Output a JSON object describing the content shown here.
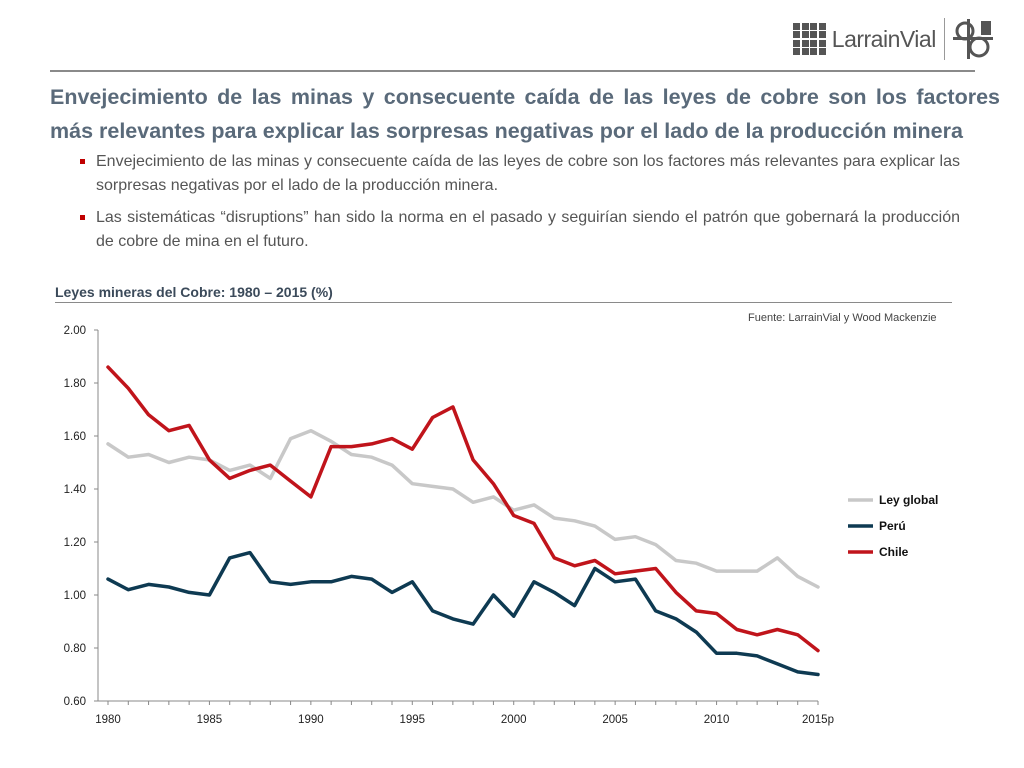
{
  "brand": {
    "name": "LarrainVial"
  },
  "title": "Envejecimiento de las minas y consecuente caída de las leyes de cobre son los factores más relevantes para explicar las sorpresas negativas por el lado de la producción minera",
  "bullets": [
    "Envejecimiento de las minas y consecuente caída de las leyes de cobre son los factores más relevantes para explicar las sorpresas negativas por el lado de la producción minera.",
    "Las sistemáticas “disruptions” han sido la norma en el pasado y seguirían siendo el patrón que gobernará la producción de cobre de mina en el futuro."
  ],
  "chart_data": {
    "type": "line",
    "title": "Leyes mineras del Cobre: 1980 – 2015 (%)",
    "source": "Fuente: LarrainVial y Wood Mackenzie",
    "x": [
      1980,
      1981,
      1982,
      1983,
      1984,
      1985,
      1986,
      1987,
      1988,
      1989,
      1990,
      1991,
      1992,
      1993,
      1994,
      1995,
      1996,
      1997,
      1998,
      1999,
      2000,
      2001,
      2002,
      2003,
      2004,
      2005,
      2006,
      2007,
      2008,
      2009,
      2010,
      2011,
      2012,
      2013,
      2014,
      2015
    ],
    "x_tick_labels": [
      "1980",
      "1985",
      "1990",
      "1995",
      "2000",
      "2005",
      "2010",
      "2015p"
    ],
    "x_tick_values": [
      1980,
      1985,
      1990,
      1995,
      2000,
      2005,
      2010,
      2015
    ],
    "ylim": [
      0.6,
      2.0
    ],
    "y_ticks": [
      "0.60",
      "0.80",
      "1.00",
      "1.20",
      "1.40",
      "1.60",
      "1.80",
      "2.00"
    ],
    "grid": false,
    "legend_position": "right",
    "series": [
      {
        "name": "Ley global",
        "color": "#c8c8c8",
        "values": [
          1.57,
          1.52,
          1.53,
          1.5,
          1.52,
          1.51,
          1.47,
          1.49,
          1.44,
          1.59,
          1.62,
          1.58,
          1.53,
          1.52,
          1.49,
          1.42,
          1.41,
          1.4,
          1.35,
          1.37,
          1.32,
          1.34,
          1.29,
          1.28,
          1.26,
          1.21,
          1.22,
          1.19,
          1.13,
          1.12,
          1.09,
          1.09,
          1.09,
          1.14,
          1.07,
          1.03
        ]
      },
      {
        "name": "Perú",
        "color": "#0e3a52",
        "values": [
          1.06,
          1.02,
          1.04,
          1.03,
          1.01,
          1.0,
          1.14,
          1.16,
          1.05,
          1.04,
          1.05,
          1.05,
          1.07,
          1.06,
          1.01,
          1.05,
          0.94,
          0.91,
          0.89,
          1.0,
          0.92,
          1.05,
          1.01,
          0.96,
          1.1,
          1.05,
          1.06,
          0.94,
          0.91,
          0.86,
          0.78,
          0.78,
          0.77,
          0.74,
          0.71,
          0.7
        ]
      },
      {
        "name": "Chile",
        "color": "#c0141b",
        "values": [
          1.86,
          1.78,
          1.68,
          1.62,
          1.64,
          1.51,
          1.44,
          1.47,
          1.49,
          1.43,
          1.37,
          1.56,
          1.56,
          1.57,
          1.59,
          1.55,
          1.67,
          1.71,
          1.51,
          1.42,
          1.3,
          1.27,
          1.14,
          1.11,
          1.13,
          1.08,
          1.09,
          1.1,
          1.01,
          0.94,
          0.93,
          0.87,
          0.85,
          0.87,
          0.85,
          0.79
        ]
      }
    ]
  }
}
